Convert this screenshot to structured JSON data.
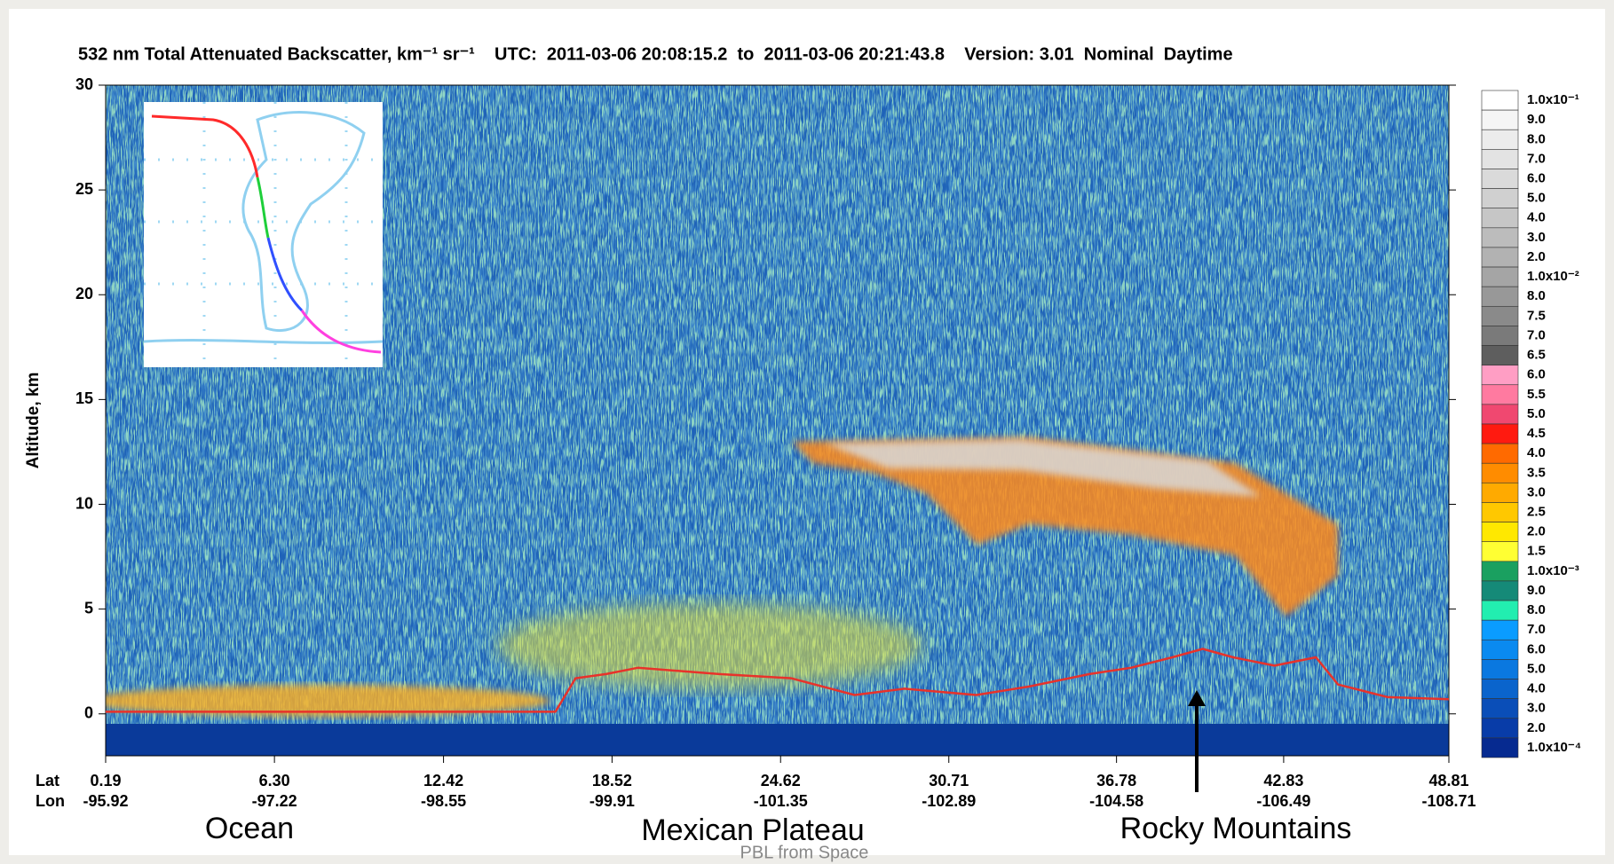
{
  "chart_data": {
    "type": "curtain",
    "title": "532 nm Total Attenuated Backscatter, km⁻¹ sr⁻¹    UTC:  2011-03-06 20:08:15.2  to  2011-03-06 20:21:43.8    Version: 3.01  Nominal  Daytime",
    "y_label": "Altitude, km",
    "ylim": [
      -2,
      30
    ],
    "yticks": [
      0,
      5,
      10,
      15,
      20,
      25,
      30
    ],
    "xlim": [
      0.19,
      48.81
    ],
    "xticks": [
      0.19,
      {
        "value": 6.3,
        "label": "6.30"
      },
      12.42,
      18.52,
      24.62,
      30.71,
      36.78,
      42.83,
      48.81
    ],
    "xtick_row_labels": [
      "Lat",
      "Lon"
    ],
    "xtick_lon_labels": [
      "-95.92",
      "-97.22",
      "-98.55",
      "-99.91",
      "-101.35",
      "-102.89",
      "-104.58",
      "-106.49",
      "-108.71"
    ],
    "series": [
      {
        "color": "#e8322a",
        "x": [
          0.19,
          16.47,
          17.2,
          18.3,
          19.45,
          22.4,
          25.0,
          27.3,
          29.1,
          31.7,
          33.6,
          35.8,
          37.3,
          38.8,
          39.9,
          41.0,
          42.5,
          44.0,
          44.8,
          46.6,
          48.81
        ],
        "values": [
          0.1,
          0.1,
          1.7,
          1.9,
          2.2,
          1.9,
          1.7,
          0.9,
          1.2,
          0.9,
          1.3,
          1.9,
          2.2,
          2.7,
          3.1,
          2.7,
          2.3,
          2.7,
          1.4,
          0.8,
          0.7
        ]
      }
    ],
    "colorbar": [
      {
        "label": "1.0x10⁻¹",
        "color": "#ffffff"
      },
      {
        "label": "9.0",
        "color": "#f5f5f5"
      },
      {
        "label": "8.0",
        "color": "#ececec"
      },
      {
        "label": "7.0",
        "color": "#e3e3e3"
      },
      {
        "label": "6.0",
        "color": "#dadada"
      },
      {
        "label": "5.0",
        "color": "#d0d0d0"
      },
      {
        "label": "4.0",
        "color": "#c6c6c6"
      },
      {
        "label": "3.0",
        "color": "#bcbcbc"
      },
      {
        "label": "2.0",
        "color": "#b2b2b2"
      },
      {
        "label": "1.0x10⁻²",
        "color": "#a5a5a5"
      },
      {
        "label": "8.0",
        "color": "#989898"
      },
      {
        "label": "7.5",
        "color": "#8a8a8a"
      },
      {
        "label": "7.0",
        "color": "#7a7a7a"
      },
      {
        "label": "6.5",
        "color": "#5e5e5e"
      },
      {
        "label": "6.0",
        "color": "#ff9ec4"
      },
      {
        "label": "5.5",
        "color": "#ff7aa0"
      },
      {
        "label": "5.0",
        "color": "#f04870"
      },
      {
        "label": "4.5",
        "color": "#ff1a10"
      },
      {
        "label": "4.0",
        "color": "#ff6a00"
      },
      {
        "label": "3.5",
        "color": "#ff8c00"
      },
      {
        "label": "3.0",
        "color": "#ffaa00"
      },
      {
        "label": "2.5",
        "color": "#ffc800"
      },
      {
        "label": "2.0",
        "color": "#ffe800"
      },
      {
        "label": "1.5",
        "color": "#ffff33"
      },
      {
        "label": "1.0x10⁻³",
        "color": "#1aa060"
      },
      {
        "label": "9.0",
        "color": "#158a78"
      },
      {
        "label": "8.0",
        "color": "#22eeb0"
      },
      {
        "label": "7.0",
        "color": "#0a9cff"
      },
      {
        "label": "6.0",
        "color": "#0a8af0"
      },
      {
        "label": "5.0",
        "color": "#0a78e0"
      },
      {
        "label": "4.0",
        "color": "#0a64cc"
      },
      {
        "label": "3.0",
        "color": "#0a4eb8"
      },
      {
        "label": "2.0",
        "color": "#083ca8"
      },
      {
        "label": "1.0x10⁻⁴",
        "color": "#062a90"
      }
    ],
    "annotations": [
      "Ocean",
      "Mexican Plateau",
      "Rocky Mountains"
    ],
    "footer": "PBL from Space"
  }
}
